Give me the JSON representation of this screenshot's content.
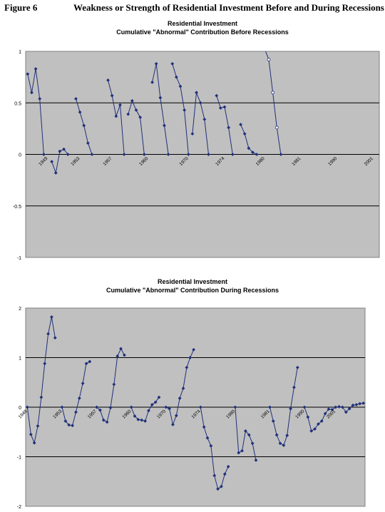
{
  "figure": {
    "number": "Figure 6",
    "title": "Weakness or Strength of Residential Investment Before and During Recessions"
  },
  "colors": {
    "plot_bg": "#c0c0c0",
    "series": "#1f2f7a",
    "grid": "#000000"
  },
  "chart_data": [
    {
      "type": "line",
      "title": "Residential Investment",
      "subtitle": "Cumulative \"Abnormal\" Contribution Before Recessions",
      "ylim": [
        -1,
        1
      ],
      "yticks": [
        -1,
        -0.5,
        0,
        0.5,
        1
      ],
      "ytick_labels": [
        "-1",
        "-0.5",
        "0",
        "0.5",
        "1"
      ],
      "grid": true,
      "x_count": 88,
      "x_labels": [
        {
          "x": 5,
          "label": "1949"
        },
        {
          "x": 13,
          "label": "1953"
        },
        {
          "x": 21,
          "label": "1957"
        },
        {
          "x": 30,
          "label": "1960"
        },
        {
          "x": 40,
          "label": "1970"
        },
        {
          "x": 49,
          "label": "1974"
        },
        {
          "x": 59,
          "label": "1980"
        },
        {
          "x": 68,
          "label": "1981"
        },
        {
          "x": 77,
          "label": "1990"
        },
        {
          "x": 86,
          "label": "2001"
        },
        {
          "x": 95,
          "label": "2007"
        }
      ],
      "series": [
        {
          "x": [
            0,
            1,
            2,
            3,
            4
          ],
          "values": [
            0.78,
            0.6,
            0.83,
            0.54,
            0.0
          ]
        },
        {
          "x": [
            6,
            7,
            8,
            9,
            10
          ],
          "values": [
            -0.07,
            -0.18,
            0.03,
            0.05,
            0.0
          ]
        },
        {
          "x": [
            12,
            13,
            14,
            15,
            16
          ],
          "values": [
            0.54,
            0.41,
            0.28,
            0.11,
            0.0
          ]
        },
        {
          "x": [
            20,
            21,
            22,
            23,
            24
          ],
          "values": [
            0.72,
            0.57,
            0.37,
            0.48,
            0.0
          ]
        },
        {
          "x": [
            25,
            26,
            27,
            28,
            29
          ],
          "values": [
            0.39,
            0.52,
            0.43,
            0.36,
            0.0
          ]
        },
        {
          "x": [
            31,
            32,
            33,
            34,
            35
          ],
          "values": [
            0.7,
            0.88,
            0.55,
            0.28,
            0.0
          ]
        },
        {
          "x": [
            36,
            37,
            38,
            39,
            40
          ],
          "values": [
            0.88,
            0.75,
            0.66,
            0.43,
            0.0
          ]
        },
        {
          "x": [
            41,
            42,
            43,
            44,
            45
          ],
          "values": [
            0.2,
            0.6,
            0.5,
            0.34,
            0.0
          ]
        },
        {
          "x": [
            47,
            48,
            49,
            50,
            51
          ],
          "values": [
            0.57,
            0.45,
            0.46,
            0.26,
            0.0
          ]
        },
        {
          "x": [
            53,
            54,
            55,
            56,
            57
          ],
          "values": [
            0.29,
            0.2,
            0.06,
            0.02,
            0.0
          ]
        },
        {
          "x": [
            59,
            60,
            61,
            62,
            63
          ],
          "values": [
            1.02,
            0.92,
            0.6,
            0.26,
            0.0
          ],
          "open_markers": [
            1,
            2,
            3
          ]
        }
      ]
    },
    {
      "type": "line",
      "title": "Residential Investment",
      "subtitle": "Cumulative \"Abnormal\" Contribution During Recessions",
      "ylim": [
        -2,
        2
      ],
      "yticks": [
        -2,
        -1,
        0,
        1,
        2
      ],
      "ytick_labels": [
        "-2",
        "-1",
        "0",
        "1",
        "2"
      ],
      "grid": true,
      "x_count": 98,
      "x_labels": [
        {
          "x": 0,
          "label": "1949"
        },
        {
          "x": 10,
          "label": "1953"
        },
        {
          "x": 20,
          "label": "1957"
        },
        {
          "x": 30,
          "label": "1960"
        },
        {
          "x": 40,
          "label": "1970"
        },
        {
          "x": 50,
          "label": "1974"
        },
        {
          "x": 60,
          "label": "1980"
        },
        {
          "x": 70,
          "label": "1981"
        },
        {
          "x": 80,
          "label": "1990"
        },
        {
          "x": 89,
          "label": "2001"
        }
      ],
      "series": [
        {
          "x": [
            0,
            1,
            2,
            3,
            4,
            5,
            6,
            7,
            8
          ],
          "values": [
            0.0,
            -0.55,
            -0.72,
            -0.38,
            0.2,
            0.88,
            1.48,
            1.82,
            1.4
          ]
        },
        {
          "x": [
            10,
            11,
            12,
            13,
            14,
            15,
            16,
            17,
            18
          ],
          "values": [
            0.0,
            -0.28,
            -0.36,
            -0.37,
            -0.1,
            0.18,
            0.48,
            0.88,
            0.92
          ]
        },
        {
          "x": [
            20,
            21,
            22,
            23,
            24,
            25,
            26,
            27,
            28
          ],
          "values": [
            0.0,
            -0.06,
            -0.26,
            -0.3,
            -0.01,
            0.46,
            1.03,
            1.18,
            1.05
          ]
        },
        {
          "x": [
            30,
            31,
            32,
            33,
            34,
            35,
            36,
            37,
            38
          ],
          "values": [
            0.0,
            -0.18,
            -0.25,
            -0.26,
            -0.28,
            -0.07,
            0.05,
            0.1,
            0.2
          ]
        },
        {
          "x": [
            40,
            41,
            42,
            43,
            44,
            45,
            46,
            47,
            48
          ],
          "values": [
            0.0,
            -0.03,
            -0.35,
            -0.17,
            0.18,
            0.38,
            0.8,
            1.0,
            1.16
          ]
        },
        {
          "x": [
            50,
            51,
            52,
            53,
            54,
            55,
            56,
            57,
            58
          ],
          "values": [
            0.0,
            -0.4,
            -0.62,
            -0.78,
            -1.38,
            -1.65,
            -1.6,
            -1.35,
            -1.2
          ]
        },
        {
          "x": [
            60,
            61,
            62,
            63,
            64,
            65,
            66
          ],
          "values": [
            0.0,
            -0.92,
            -0.88,
            -0.48,
            -0.56,
            -0.73,
            -1.07
          ]
        },
        {
          "x": [
            70,
            71,
            72,
            73,
            74,
            75,
            76,
            77,
            78
          ],
          "values": [
            0.0,
            -0.28,
            -0.56,
            -0.73,
            -0.77,
            -0.57,
            -0.03,
            0.4,
            0.8
          ]
        },
        {
          "x": [
            80,
            81,
            82,
            83,
            84,
            85,
            86,
            87,
            88,
            89,
            90,
            91,
            92,
            93,
            94,
            95,
            96,
            97
          ],
          "values": [
            0.0,
            -0.2,
            -0.48,
            -0.44,
            -0.34,
            -0.28,
            -0.13,
            -0.04,
            -0.05,
            0.0,
            0.01,
            0.0,
            -0.1,
            -0.03,
            0.04,
            0.05,
            0.07,
            0.08
          ]
        }
      ]
    }
  ]
}
